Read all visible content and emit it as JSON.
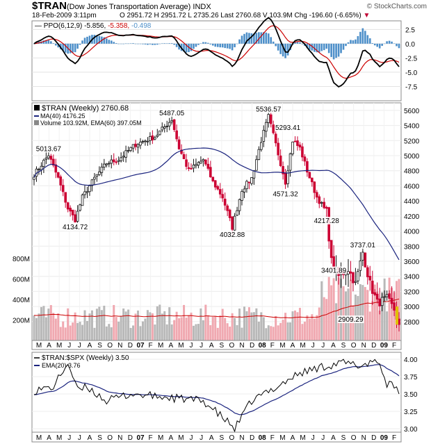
{
  "header": {
    "symbol": "$TRAN",
    "name": "(Dow Jones Transportation Average)",
    "exchange": "INDX",
    "date": "18-Feb-2009 3:11pm",
    "brand": "© StockCharts.com",
    "quote": "O 2951.72  H 2951.72  L 2735.26  Last 2760.68  V 103.9M  Chg -196.60 (-6.65%)"
  },
  "colors": {
    "up": "#111111",
    "down": "#cc0033",
    "ma": "#1a237e",
    "ema_red": "#cc0000",
    "hist": "#4d8fc9",
    "vol_up": "#b8b8b8",
    "vol_down": "#f0a8b0"
  },
  "chart_data": [
    {
      "type": "line",
      "panel": "ppo",
      "legend": {
        "label": "PPO(6,12,9)",
        "ppo": "-5.856",
        "signal": "-5.358",
        "hist": "-0.498"
      },
      "y_ticks": [
        "2.5",
        "0.0",
        "-2.5",
        "-5.0",
        "-7.5"
      ],
      "ylim": [
        -10,
        4
      ]
    },
    {
      "type": "candlestick",
      "panel": "price",
      "legend": {
        "title": "$TRAN (Weekly) 2760.68",
        "ma": "MA(40) 4176.25",
        "volume": "Volume 103.92M, EMA(60) 397.05M"
      },
      "y_ticks": [
        "5600",
        "5400",
        "5200",
        "5000",
        "4800",
        "4600",
        "4400",
        "4200",
        "4000",
        "3800",
        "3600",
        "3400",
        "3200",
        "3000",
        "2800"
      ],
      "ylim": [
        2550,
        5700
      ],
      "annotations": [
        {
          "text": "5013.67",
          "value": 5013.67,
          "week": 6
        },
        {
          "text": "4134.72",
          "value": 4134.72,
          "week": 17
        },
        {
          "text": "5487.05",
          "value": 5487.05,
          "week": 57
        },
        {
          "text": "4032.88",
          "value": 4032.88,
          "week": 82
        },
        {
          "text": "5536.57",
          "value": 5536.57,
          "week": 97
        },
        {
          "text": "5293.41",
          "value": 5293.41,
          "week": 105
        },
        {
          "text": "4571.32",
          "value": 4571.32,
          "week": 104
        },
        {
          "text": "4217.28",
          "value": 4217.28,
          "week": 121
        },
        {
          "text": "3737.01",
          "value": 3737.01,
          "week": 136
        },
        {
          "text": "3401.89",
          "value": 3401.89,
          "week": 124
        },
        {
          "text": "2909.29",
          "value": 2909.29,
          "week": 131
        }
      ],
      "volume_ticks": [
        "800M",
        "600M",
        "400M",
        "200M"
      ]
    },
    {
      "type": "line",
      "panel": "ratio",
      "legend": {
        "ratio": "$TRAN:$SPX (Weekly) 3.50",
        "ema": "EMA(20) 3.76"
      },
      "y_ticks": [
        "4.00",
        "3.75",
        "3.50",
        "3.25",
        "3.00"
      ],
      "ylim": [
        2.95,
        4.1
      ]
    }
  ],
  "x_axis": [
    "M",
    "A",
    "M",
    "J",
    "J",
    "A",
    "S",
    "O",
    "N",
    "D",
    "07",
    "F",
    "M",
    "A",
    "M",
    "J",
    "J",
    "A",
    "S",
    "O",
    "N",
    "D",
    "08",
    "F",
    "M",
    "A",
    "M",
    "J",
    "J",
    "A",
    "S",
    "O",
    "N",
    "D",
    "09",
    "F"
  ]
}
